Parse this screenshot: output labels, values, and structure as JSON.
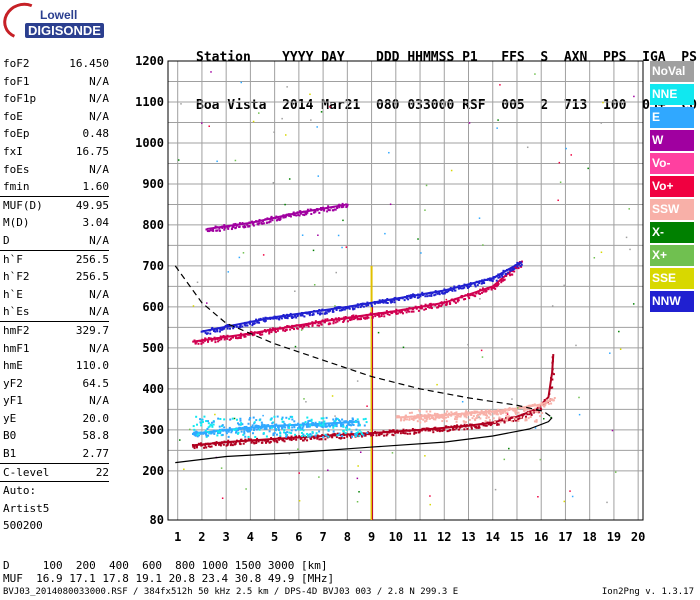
{
  "logo": {
    "top": "Lowell",
    "bottom": "DIGISONDE"
  },
  "header": {
    "line1": "Station    YYYY DAY    DDD HHMMSS P1   FFS  S  AXN  PPS  IGA  PS",
    "line2": "Boa Vista  2014 Mar21  080 033000 RSF  005  2  713  100  03+  C0"
  },
  "params": [
    {
      "name": "foF2",
      "value": "16.450"
    },
    {
      "name": "foF1",
      "value": "N/A"
    },
    {
      "name": "foF1p",
      "value": "N/A"
    },
    {
      "name": "foE",
      "value": "N/A"
    },
    {
      "name": "foEp",
      "value": "0.48"
    },
    {
      "name": "fxI",
      "value": "16.75"
    },
    {
      "name": "foEs",
      "value": "N/A"
    },
    {
      "name": "fmin",
      "value": "1.60"
    },
    {
      "name": "MUF(D)",
      "value": "49.95",
      "sep": true
    },
    {
      "name": "M(D)",
      "value": "3.04"
    },
    {
      "name": "D",
      "value": "N/A"
    },
    {
      "name": "h`F",
      "value": "256.5",
      "sep": true
    },
    {
      "name": "h`F2",
      "value": "256.5"
    },
    {
      "name": "h`E",
      "value": "N/A"
    },
    {
      "name": "h`Es",
      "value": "N/A"
    },
    {
      "name": "hmF2",
      "value": "329.7",
      "sep": true
    },
    {
      "name": "hmF1",
      "value": "N/A"
    },
    {
      "name": "hmE",
      "value": "110.0"
    },
    {
      "name": "yF2",
      "value": "64.5"
    },
    {
      "name": "yF1",
      "value": "N/A"
    },
    {
      "name": "yE",
      "value": "20.0"
    },
    {
      "name": "B0",
      "value": "58.8"
    },
    {
      "name": "B1",
      "value": "2.77"
    },
    {
      "name": "C-level",
      "value": "22",
      "sep": true
    }
  ],
  "auto": {
    "line1": "Auto:",
    "line2": "Artist5",
    "line3": "500200"
  },
  "legend": [
    {
      "label": "NoVal",
      "color": "#a0a0a0"
    },
    {
      "label": "NNE",
      "color": "#10e8f0"
    },
    {
      "label": "E",
      "color": "#30a8ff"
    },
    {
      "label": "W",
      "color": "#a000a0"
    },
    {
      "label": "Vo-",
      "color": "#ff40a0"
    },
    {
      "label": "Vo+",
      "color": "#f00040"
    },
    {
      "label": "SSW",
      "color": "#f8b0a8"
    },
    {
      "label": "X-",
      "color": "#008000"
    },
    {
      "label": "X+",
      "color": "#70c050"
    },
    {
      "label": "SSE",
      "color": "#d8d800"
    },
    {
      "label": "NNW",
      "color": "#2020d0"
    }
  ],
  "muf_table": {
    "line1": "D     100  200  400  600  800 1000 1500 3000 [km]",
    "line2": "MUF  16.9 17.1 17.8 19.1 20.8 23.4 30.8 49.9 [MHz]"
  },
  "footer": {
    "left": "BVJ03_2014080033000.RSF / 384fx512h 50 kHz 2.5 km / DPS-4D BVJ03 003 / 2.8 N 299.3 E",
    "right": "Ion2Png v. 1.3.17"
  },
  "chart_data": {
    "type": "scatter",
    "xlim": [
      1,
      20
    ],
    "ylim": [
      80,
      1200
    ],
    "x_ticks": [
      1,
      2,
      3,
      4,
      5,
      6,
      7,
      8,
      9,
      10,
      11,
      12,
      13,
      14,
      15,
      16,
      17,
      18,
      19,
      20
    ],
    "y_ticks": [
      80,
      200,
      300,
      400,
      500,
      600,
      700,
      800,
      900,
      1000,
      1100,
      1200
    ],
    "grid": true,
    "traces": [
      {
        "name": "O-trace F2",
        "color": "#b00020",
        "points": [
          [
            1.6,
            262
          ],
          [
            3,
            270
          ],
          [
            5,
            278
          ],
          [
            7,
            285
          ],
          [
            9,
            292
          ],
          [
            11,
            300
          ],
          [
            13,
            310
          ],
          [
            14,
            318
          ],
          [
            15,
            332
          ],
          [
            15.8,
            350
          ],
          [
            16.3,
            380
          ],
          [
            16.45,
            440
          ],
          [
            16.5,
            485
          ]
        ]
      },
      {
        "name": "X-trace F2",
        "color": "#f8b0a8",
        "points": [
          [
            10,
            330
          ],
          [
            12,
            336
          ],
          [
            14,
            345
          ],
          [
            15,
            352
          ],
          [
            16,
            362
          ],
          [
            16.5,
            375
          ]
        ]
      },
      {
        "name": "E echoes",
        "color": "#30a8ff",
        "points": [
          [
            1.6,
            290
          ],
          [
            3,
            300
          ],
          [
            5,
            310
          ],
          [
            7,
            315
          ],
          [
            8.5,
            320
          ]
        ]
      },
      {
        "name": "2nd hop O",
        "color": "#d00050",
        "points": [
          [
            1.6,
            515
          ],
          [
            4,
            535
          ],
          [
            7,
            565
          ],
          [
            10,
            590
          ],
          [
            12,
            610
          ],
          [
            14,
            650
          ],
          [
            15.2,
            710
          ]
        ]
      },
      {
        "name": "2nd hop NNE",
        "color": "#2020d0",
        "points": [
          [
            2,
            540
          ],
          [
            5,
            575
          ],
          [
            8,
            600
          ],
          [
            12,
            640
          ],
          [
            14,
            670
          ],
          [
            15.2,
            710
          ]
        ]
      },
      {
        "name": "3rd hop",
        "color": "#a000a0",
        "points": [
          [
            2.2,
            790
          ],
          [
            4,
            805
          ],
          [
            6,
            830
          ],
          [
            8,
            850
          ]
        ]
      }
    ],
    "profile_dashed": [
      [
        0.9,
        700
      ],
      [
        2,
        610
      ],
      [
        3,
        560
      ],
      [
        5,
        510
      ],
      [
        7,
        470
      ],
      [
        9,
        430
      ],
      [
        11,
        400
      ],
      [
        13,
        378
      ],
      [
        15,
        360
      ],
      [
        16.1,
        345
      ],
      [
        16.45,
        330
      ]
    ],
    "profile_solid": [
      [
        0.9,
        220
      ],
      [
        3,
        235
      ],
      [
        6,
        245
      ],
      [
        9,
        258
      ],
      [
        12,
        270
      ],
      [
        14,
        285
      ],
      [
        15.5,
        302
      ],
      [
        16.3,
        320
      ],
      [
        16.45,
        330
      ]
    ]
  }
}
